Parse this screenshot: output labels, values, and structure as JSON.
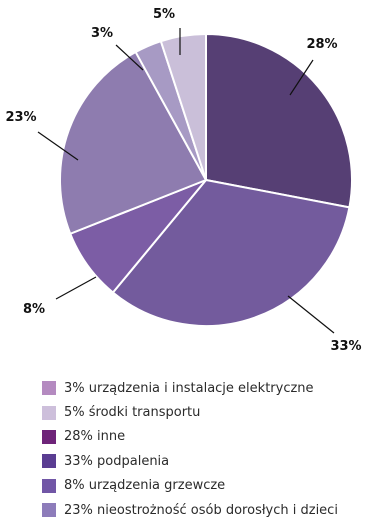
{
  "chart_data": {
    "type": "pie",
    "slices": [
      {
        "value": 28,
        "label": "28%",
        "color": "#563f74"
      },
      {
        "value": 33,
        "label": "33%",
        "color": "#735b9d"
      },
      {
        "value": 8,
        "label": "8%",
        "color": "#7c5da5"
      },
      {
        "value": 23,
        "label": "23%",
        "color": "#8e7caf"
      },
      {
        "value": 3,
        "label": "3%",
        "color": "#a79ac4"
      },
      {
        "value": 5,
        "label": "5%",
        "color": "#cabfd9"
      }
    ],
    "legend": [
      {
        "text": "3% urządzenia i instalacje elektryczne",
        "color": "#b48ac0"
      },
      {
        "text": "5% środki transportu",
        "color": "#cdbfdb"
      },
      {
        "text": "28% inne",
        "color": "#6e2479"
      },
      {
        "text": "33% podpalenia",
        "color": "#5a3d92"
      },
      {
        "text": "8% urządzenia grzewcze",
        "color": "#7156a6"
      },
      {
        "text": "23% nieostrożność osób dorosłych i dzieci",
        "color": "#8d7cba"
      }
    ],
    "legend_position": "bottom"
  }
}
